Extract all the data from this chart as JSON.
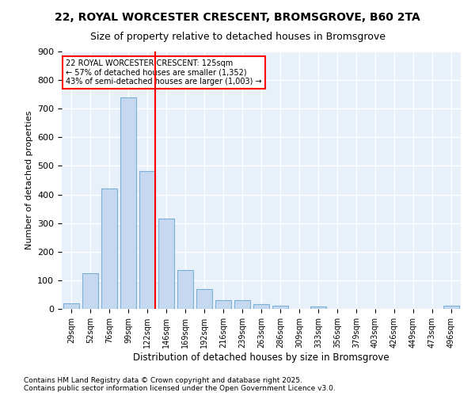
{
  "title_line1": "22, ROYAL WORCESTER CRESCENT, BROMSGROVE, B60 2TA",
  "title_line2": "Size of property relative to detached houses in Bromsgrove",
  "xlabel": "Distribution of detached houses by size in Bromsgrove",
  "ylabel": "Number of detached properties",
  "bar_labels": [
    "29sqm",
    "52sqm",
    "76sqm",
    "99sqm",
    "122sqm",
    "146sqm",
    "169sqm",
    "192sqm",
    "216sqm",
    "239sqm",
    "263sqm",
    "286sqm",
    "309sqm",
    "333sqm",
    "356sqm",
    "379sqm",
    "403sqm",
    "426sqm",
    "449sqm",
    "473sqm",
    "496sqm"
  ],
  "bar_values": [
    20,
    125,
    422,
    740,
    483,
    316,
    135,
    68,
    30,
    30,
    18,
    10,
    0,
    8,
    0,
    0,
    0,
    0,
    0,
    0,
    10
  ],
  "bar_color": "#c5d8f0",
  "bar_edgecolor": "#7bafd4",
  "background_color": "#e8f0fa",
  "grid_color": "#ffffff",
  "vline_x": 4.425,
  "vline_color": "red",
  "annotation_text": "22 ROYAL WORCESTER CRESCENT: 125sqm\n← 57% of detached houses are smaller (1,352)\n43% of semi-detached houses are larger (1,003) →",
  "annotation_box_color": "white",
  "annotation_box_edgecolor": "red",
  "footer_text": "Contains HM Land Registry data © Crown copyright and database right 2025.\nContains public sector information licensed under the Open Government Licence v3.0.",
  "ylim": [
    0,
    900
  ],
  "yticks": [
    0,
    100,
    200,
    300,
    400,
    500,
    600,
    700,
    800,
    900
  ]
}
